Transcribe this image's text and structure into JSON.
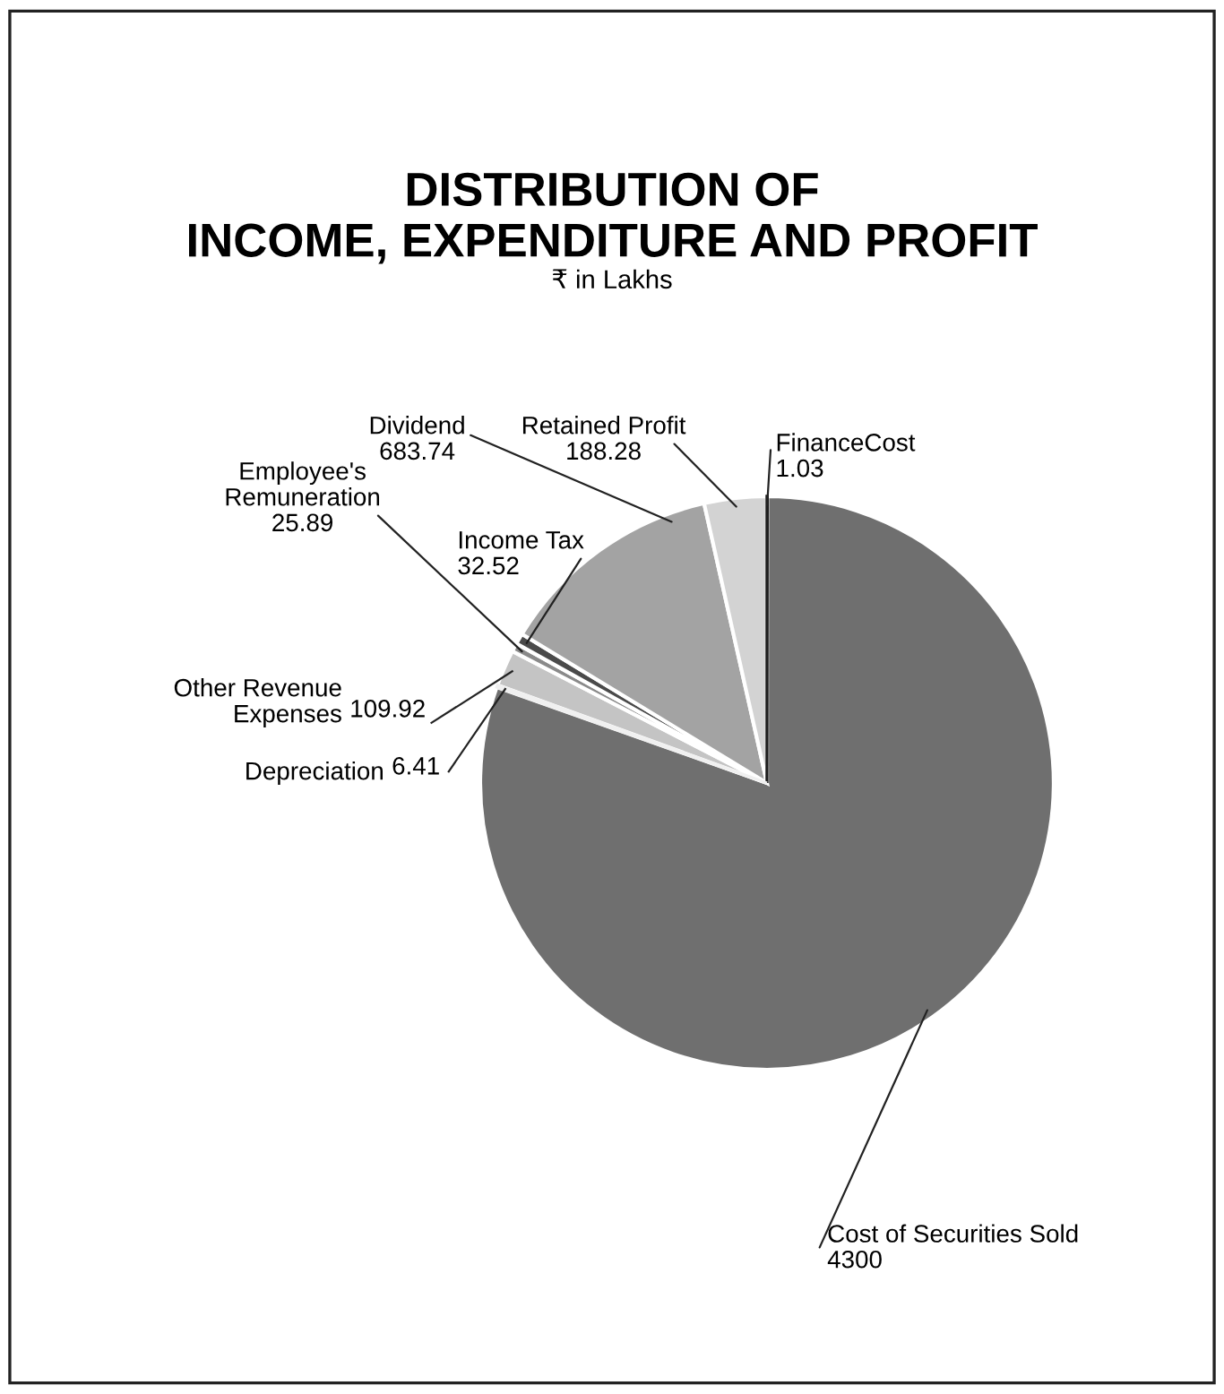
{
  "chart_data": {
    "type": "pie",
    "title": "DISTRIBUTION OF\nINCOME, EXPENDITURE AND PROFIT",
    "subtitle": "₹ in Lakhs",
    "categories": [
      "FinanceCost",
      "Cost of Securities Sold",
      "Depreciation",
      "Other Revenue Expenses",
      "Employee's Remuneration",
      "Income Tax",
      "Dividend",
      "Retained Profit"
    ],
    "values": [
      1.03,
      4300,
      6.41,
      109.92,
      25.89,
      32.52,
      683.74,
      188.28
    ],
    "colors": [
      "#1e1e1e",
      "#6f6f6f",
      "#f0f0f0",
      "#c4c4c4",
      "#8a8a8a",
      "#4a4a4a",
      "#a3a3a3",
      "#d3d3d3"
    ],
    "data_labels": true
  }
}
